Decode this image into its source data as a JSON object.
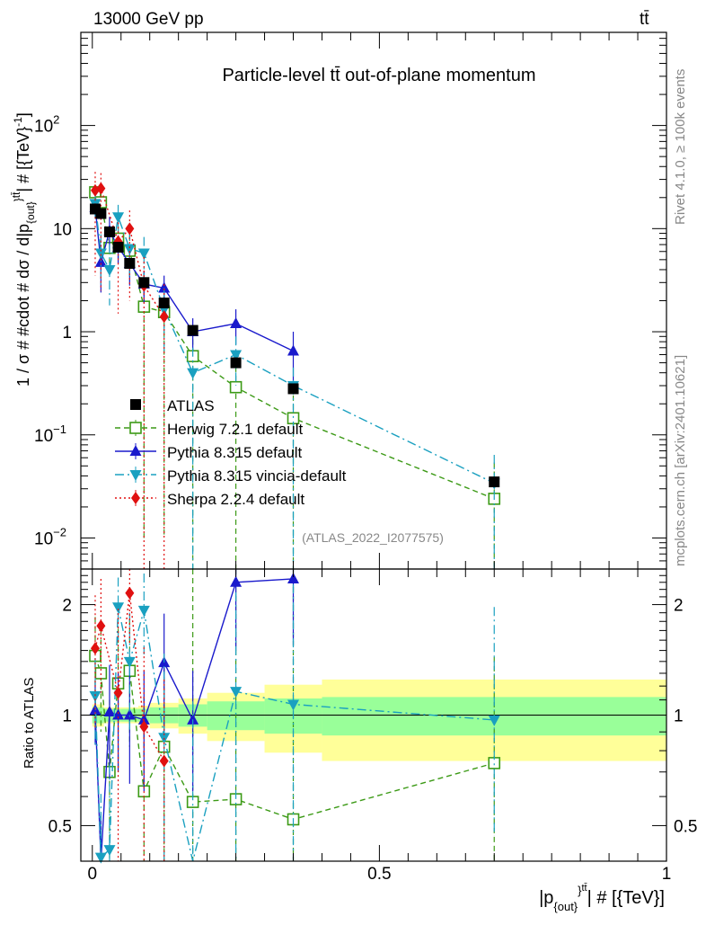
{
  "header": {
    "energy_label": "13000 GeV pp",
    "process_label": "tt̄",
    "plot_title": "Particle-level tt̄ out-of-plane momentum",
    "side_label_top": "Rivet 4.1.0, ≥ 100k events",
    "side_label_bottom": "mcplots.cern.ch [arXiv:2401.10621]",
    "analysis_id": "(ATLAS_2022_I2077575)"
  },
  "colors": {
    "atlas": "#000000",
    "herwig": "#3c9a16",
    "pythia": "#1a1acc",
    "vincia": "#1aa0c0",
    "sherpa": "#e01010",
    "band_inner": "#99ff99",
    "band_outer": "#ffff99"
  },
  "chart_data": [
    {
      "type": "line",
      "panel": "main",
      "title": "Particle-level tt̄ out-of-plane momentum",
      "ylabel": "1 / σ # #cdot # dσ / d|p_{out}^{tt̄}| # [{TeV}^-1]",
      "yscale": "log",
      "ylim": [
        0.005,
        800
      ],
      "xlim": [
        -0.02,
        1.0
      ],
      "y_ticks": [
        {
          "v": 0.01,
          "base": "10",
          "exp": "−2"
        },
        {
          "v": 0.1,
          "base": "10",
          "exp": "−1"
        },
        {
          "v": 1,
          "base": "1",
          "exp": ""
        },
        {
          "v": 10,
          "base": "10",
          "exp": ""
        },
        {
          "v": 100,
          "base": "10",
          "exp": "2"
        }
      ],
      "legend": [
        {
          "key": "atlas",
          "label": "ATLAS"
        },
        {
          "key": "herwig",
          "label": "Herwig 7.2.1 default"
        },
        {
          "key": "pythia",
          "label": "Pythia 8.315 default"
        },
        {
          "key": "vincia",
          "label": "Pythia 8.315 vincia-default"
        },
        {
          "key": "sherpa",
          "label": "Sherpa 2.2.4 default"
        }
      ],
      "series": [
        {
          "key": "atlas",
          "name": "ATLAS",
          "style": "square",
          "line": "none",
          "x": [
            0.005,
            0.015,
            0.03,
            0.045,
            0.065,
            0.09,
            0.125,
            0.175,
            0.25,
            0.35,
            0.7
          ],
          "y": [
            15.5,
            14.0,
            9.3,
            6.6,
            4.6,
            3.0,
            1.9,
            1.03,
            0.5,
            0.28,
            0.035
          ],
          "err": [
            0.4,
            0.4,
            0.3,
            0.2,
            0.15,
            0.1,
            0.07,
            0.04,
            0.03,
            0.02,
            0.003
          ],
          "band_x": [
            0,
            0.01,
            0.02,
            0.04,
            0.05,
            0.08,
            0.1,
            0.15,
            0.2,
            0.3,
            0.4,
            1.0
          ],
          "band_inner": [
            0.05,
            0.05,
            0.04,
            0.04,
            0.04,
            0.04,
            0.05,
            0.07,
            0.09,
            0.11,
            0.12
          ],
          "band_outer": [
            0.07,
            0.07,
            0.05,
            0.05,
            0.05,
            0.06,
            0.08,
            0.11,
            0.15,
            0.21,
            0.25
          ]
        },
        {
          "key": "herwig",
          "name": "Herwig 7.2.1 default",
          "style": "open-square",
          "line": "dashed",
          "x": [
            0.005,
            0.015,
            0.03,
            0.045,
            0.065,
            0.09,
            0.125,
            0.175,
            0.25,
            0.35,
            0.7
          ],
          "y": [
            22.5,
            18.0,
            6.5,
            8.0,
            6.1,
            1.75,
            1.55,
            0.58,
            0.29,
            0.145,
            0.024
          ],
          "err_hi": [
            4.0,
            4.0,
            3.0,
            2.5,
            2.5,
            2.0,
            1.2,
            0.45,
            0.27,
            0.15,
            0.03
          ],
          "err_lo": [
            4.0,
            4.0,
            2.5,
            3.0,
            3.0,
            1.74,
            1.54,
            0.579,
            0.289,
            0.1449,
            0.0239
          ]
        },
        {
          "key": "pythia",
          "name": "Pythia 8.315 default",
          "style": "triangle-up",
          "line": "solid",
          "x": [
            0.005,
            0.015,
            0.03,
            0.045,
            0.065,
            0.09,
            0.125,
            0.175,
            0.25,
            0.35
          ],
          "y": [
            16.0,
            4.7,
            9.5,
            6.6,
            4.6,
            2.9,
            2.65,
            1.0,
            1.2,
            0.65
          ],
          "err": [
            3.0,
            2.3,
            3.5,
            2.0,
            1.8,
            1.0,
            0.85,
            0.35,
            0.45,
            0.35
          ]
        },
        {
          "key": "vincia",
          "name": "Pythia 8.315 vincia-default",
          "style": "triangle-down",
          "line": "dashdot",
          "x": [
            0.005,
            0.015,
            0.03,
            0.045,
            0.065,
            0.09,
            0.125,
            0.175,
            0.25,
            0.35,
            0.7
          ],
          "y": [
            17.5,
            5.8,
            4.0,
            13.0,
            6.4,
            5.8,
            1.65,
            0.4,
            0.6,
            0.3,
            0.034
          ],
          "err_hi": [
            5.0,
            3.0,
            3.0,
            4.0,
            3.0,
            2.5,
            1.0,
            0.3,
            0.3,
            0.15,
            0.03
          ],
          "err_lo": [
            5.0,
            3.0,
            2.2,
            4.0,
            3.0,
            2.5,
            1.0,
            0.399,
            0.3,
            0.299,
            0.0339
          ]
        },
        {
          "key": "sherpa",
          "name": "Sherpa 2.2.4 default",
          "style": "diamond",
          "line": "dotted",
          "x": [
            0.005,
            0.015,
            0.045,
            0.065,
            0.09,
            0.125
          ],
          "y": [
            23.5,
            24.5,
            7.5,
            10.0,
            2.8,
            1.4
          ],
          "err_hi": [
            12.0,
            10.0,
            4.0,
            5.0,
            2.5,
            1.5
          ],
          "err_lo": [
            20.0,
            22.0,
            6.0,
            8.0,
            2.799,
            1.399
          ]
        }
      ]
    },
    {
      "type": "line",
      "panel": "ratio",
      "ylabel": "Ratio to ATLAS",
      "yscale": "log",
      "ylim": [
        0.4,
        2.5
      ],
      "y_ticks": [
        0.5,
        1,
        2
      ],
      "x_ticks": [
        0,
        0.5,
        1
      ],
      "xlabel": "|p_{out}^{tt̄}| # [{TeV}]",
      "series": [
        {
          "key": "herwig",
          "x": [
            0.005,
            0.015,
            0.03,
            0.045,
            0.065,
            0.09,
            0.125,
            0.175,
            0.25,
            0.35,
            0.7
          ],
          "y": [
            1.45,
            1.3,
            0.7,
            1.22,
            1.32,
            0.62,
            0.82,
            0.58,
            0.59,
            0.52,
            0.74
          ],
          "err_hi": [
            0.4,
            0.4,
            0.4,
            0.5,
            0.5,
            0.5,
            0.6,
            2.0,
            2.0,
            2.0,
            0.7
          ],
          "err_lo": [
            0.4,
            0.4,
            0.3,
            0.5,
            0.5,
            0.5,
            0.5,
            0.5,
            0.5,
            0.5,
            0.5
          ]
        },
        {
          "key": "pythia",
          "x": [
            0.005,
            0.015,
            0.03,
            0.045,
            0.065,
            0.09,
            0.125,
            0.175,
            0.25,
            0.35
          ],
          "y": [
            1.03,
            0.34,
            1.02,
            1.0,
            1.0,
            0.97,
            1.39,
            0.97,
            2.3,
            2.35
          ],
          "err": [
            0.2,
            0.2,
            0.35,
            0.3,
            0.35,
            0.35,
            0.5,
            0.35,
            0.8,
            0.8
          ]
        },
        {
          "key": "vincia",
          "x": [
            0.005,
            0.015,
            0.03,
            0.045,
            0.065,
            0.09,
            0.125,
            0.175,
            0.25,
            0.35,
            0.7
          ],
          "y": [
            1.13,
            0.41,
            0.43,
            1.97,
            1.4,
            1.93,
            0.87,
            0.39,
            1.16,
            1.07,
            0.97
          ],
          "err_hi": [
            0.3,
            0.2,
            0.3,
            0.4,
            0.5,
            0.5,
            0.6,
            0.7,
            1.0,
            1.2,
            1.0
          ],
          "err_lo": [
            0.3,
            0.2,
            0.3,
            0.4,
            0.5,
            0.5,
            0.6,
            0.2,
            1.0,
            1.0,
            0.5
          ]
        },
        {
          "key": "sherpa",
          "x": [
            0.005,
            0.015,
            0.045,
            0.065,
            0.09,
            0.125
          ],
          "y": [
            1.52,
            1.75,
            1.15,
            2.15,
            0.93,
            0.75
          ],
          "err_hi": [
            0.6,
            0.6,
            0.8,
            0.6,
            0.6,
            0.5
          ],
          "err_lo": [
            0.6,
            0.6,
            0.8,
            0.6,
            0.6,
            0.5
          ]
        }
      ]
    }
  ]
}
